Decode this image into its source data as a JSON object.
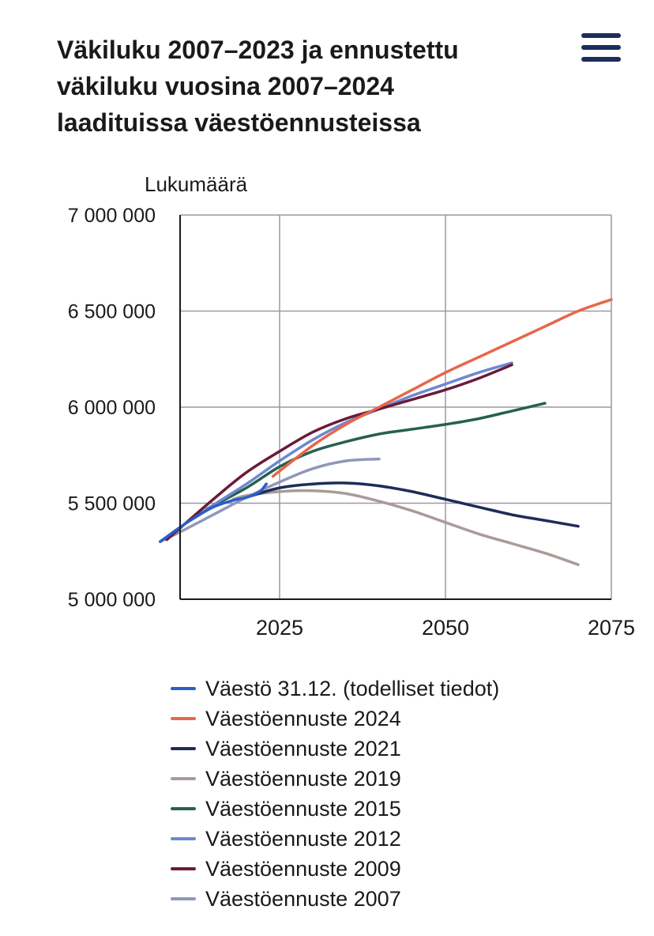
{
  "title": "Väkiluku 2007–2023 ja ennustettu väkiluku vuosina 2007–2024 laadituissa väestöennusteissa",
  "menu": {
    "icon": "hamburger-menu-icon"
  },
  "colors": {
    "grid": "#9a9a9a",
    "axis": "#1a1a1a"
  },
  "chart_data": {
    "type": "line",
    "title": "Väkiluku 2007–2023 ja ennustettu väkiluku vuosina 2007–2024 laadituissa väestöennusteissa",
    "xlabel": "",
    "ylabel": "Lukumäärä",
    "xlim": [
      2010,
      2075
    ],
    "ylim": [
      5000000,
      7000000
    ],
    "xticks": [
      2025,
      2050,
      2075
    ],
    "xtick_labels": [
      "2025",
      "2050",
      "2075"
    ],
    "yticks": [
      5000000,
      5500000,
      6000000,
      6500000,
      7000000
    ],
    "ytick_labels": [
      "5 000 000",
      "5 500 000",
      "6 000 000",
      "6 500 000",
      "7 000 000"
    ],
    "grid": true,
    "legend": "bottom",
    "series": [
      {
        "name": "Väestöennuste 2019",
        "color": "#a89c98",
        "x": [
          2018,
          2020,
          2025,
          2030,
          2035,
          2040,
          2045,
          2050,
          2055,
          2060,
          2065,
          2070
        ],
        "y": [
          5520000,
          5540000,
          5560000,
          5565000,
          5550000,
          5510000,
          5460000,
          5400000,
          5340000,
          5290000,
          5240000,
          5180000
        ]
      },
      {
        "name": "Väestöennuste 2021",
        "color": "#1d2d5a",
        "x": [
          2020,
          2025,
          2030,
          2035,
          2040,
          2045,
          2050,
          2055,
          2060,
          2065,
          2070
        ],
        "y": [
          5530000,
          5580000,
          5600000,
          5605000,
          5590000,
          5560000,
          5520000,
          5480000,
          5440000,
          5410000,
          5380000
        ]
      },
      {
        "name": "Väestöennuste 2015",
        "color": "#27604f",
        "x": [
          2014,
          2020,
          2025,
          2030,
          2035,
          2040,
          2045,
          2050,
          2055,
          2060,
          2065
        ],
        "y": [
          5470000,
          5580000,
          5690000,
          5770000,
          5820000,
          5860000,
          5885000,
          5910000,
          5940000,
          5980000,
          6020000
        ]
      },
      {
        "name": "Väestöennuste 2007",
        "color": "#9197b8",
        "x": [
          2007,
          2010,
          2015,
          2020,
          2025,
          2030,
          2035,
          2040
        ],
        "y": [
          5300000,
          5350000,
          5440000,
          5530000,
          5610000,
          5680000,
          5720000,
          5730000
        ]
      },
      {
        "name": "Väestöennuste 2012",
        "color": "#6e88cf",
        "x": [
          2011,
          2015,
          2020,
          2025,
          2030,
          2035,
          2040,
          2045,
          2050,
          2055,
          2060
        ],
        "y": [
          5400000,
          5490000,
          5600000,
          5720000,
          5830000,
          5920000,
          5990000,
          6060000,
          6120000,
          6180000,
          6230000
        ]
      },
      {
        "name": "Väestöennuste 2009",
        "color": "#6b1a3a",
        "x": [
          2008,
          2015,
          2020,
          2025,
          2030,
          2035,
          2040,
          2045,
          2050,
          2055,
          2060
        ],
        "y": [
          5310000,
          5520000,
          5660000,
          5770000,
          5870000,
          5940000,
          5990000,
          6040000,
          6090000,
          6150000,
          6220000
        ]
      },
      {
        "name": "Väestöennuste 2024",
        "color": "#e8664a",
        "x": [
          2024,
          2030,
          2035,
          2040,
          2045,
          2050,
          2055,
          2060,
          2065,
          2070,
          2075
        ],
        "y": [
          5640000,
          5800000,
          5910000,
          6000000,
          6090000,
          6180000,
          6260000,
          6340000,
          6420000,
          6500000,
          6560000
        ]
      },
      {
        "name": "Väestö 31.12. (todelliset tiedot)",
        "color": "#2b5ec9",
        "x": [
          2007,
          2010,
          2012,
          2015,
          2018,
          2020,
          2022,
          2023
        ],
        "y": [
          5300000,
          5375000,
          5420000,
          5480000,
          5515000,
          5530000,
          5560000,
          5600000
        ]
      }
    ]
  },
  "legend_items": [
    {
      "label": "Väestö 31.12. (todelliset tiedot)",
      "color": "#2b5ec9"
    },
    {
      "label": "Väestöennuste 2024",
      "color": "#e8664a"
    },
    {
      "label": "Väestöennuste 2021",
      "color": "#1d2d5a"
    },
    {
      "label": "Väestöennuste 2019",
      "color": "#a89c98"
    },
    {
      "label": "Väestöennuste 2015",
      "color": "#27604f"
    },
    {
      "label": "Väestöennuste 2012",
      "color": "#6e88cf"
    },
    {
      "label": "Väestöennuste 2009",
      "color": "#6b1a3a"
    },
    {
      "label": "Väestöennuste 2007",
      "color": "#9197b8"
    }
  ]
}
